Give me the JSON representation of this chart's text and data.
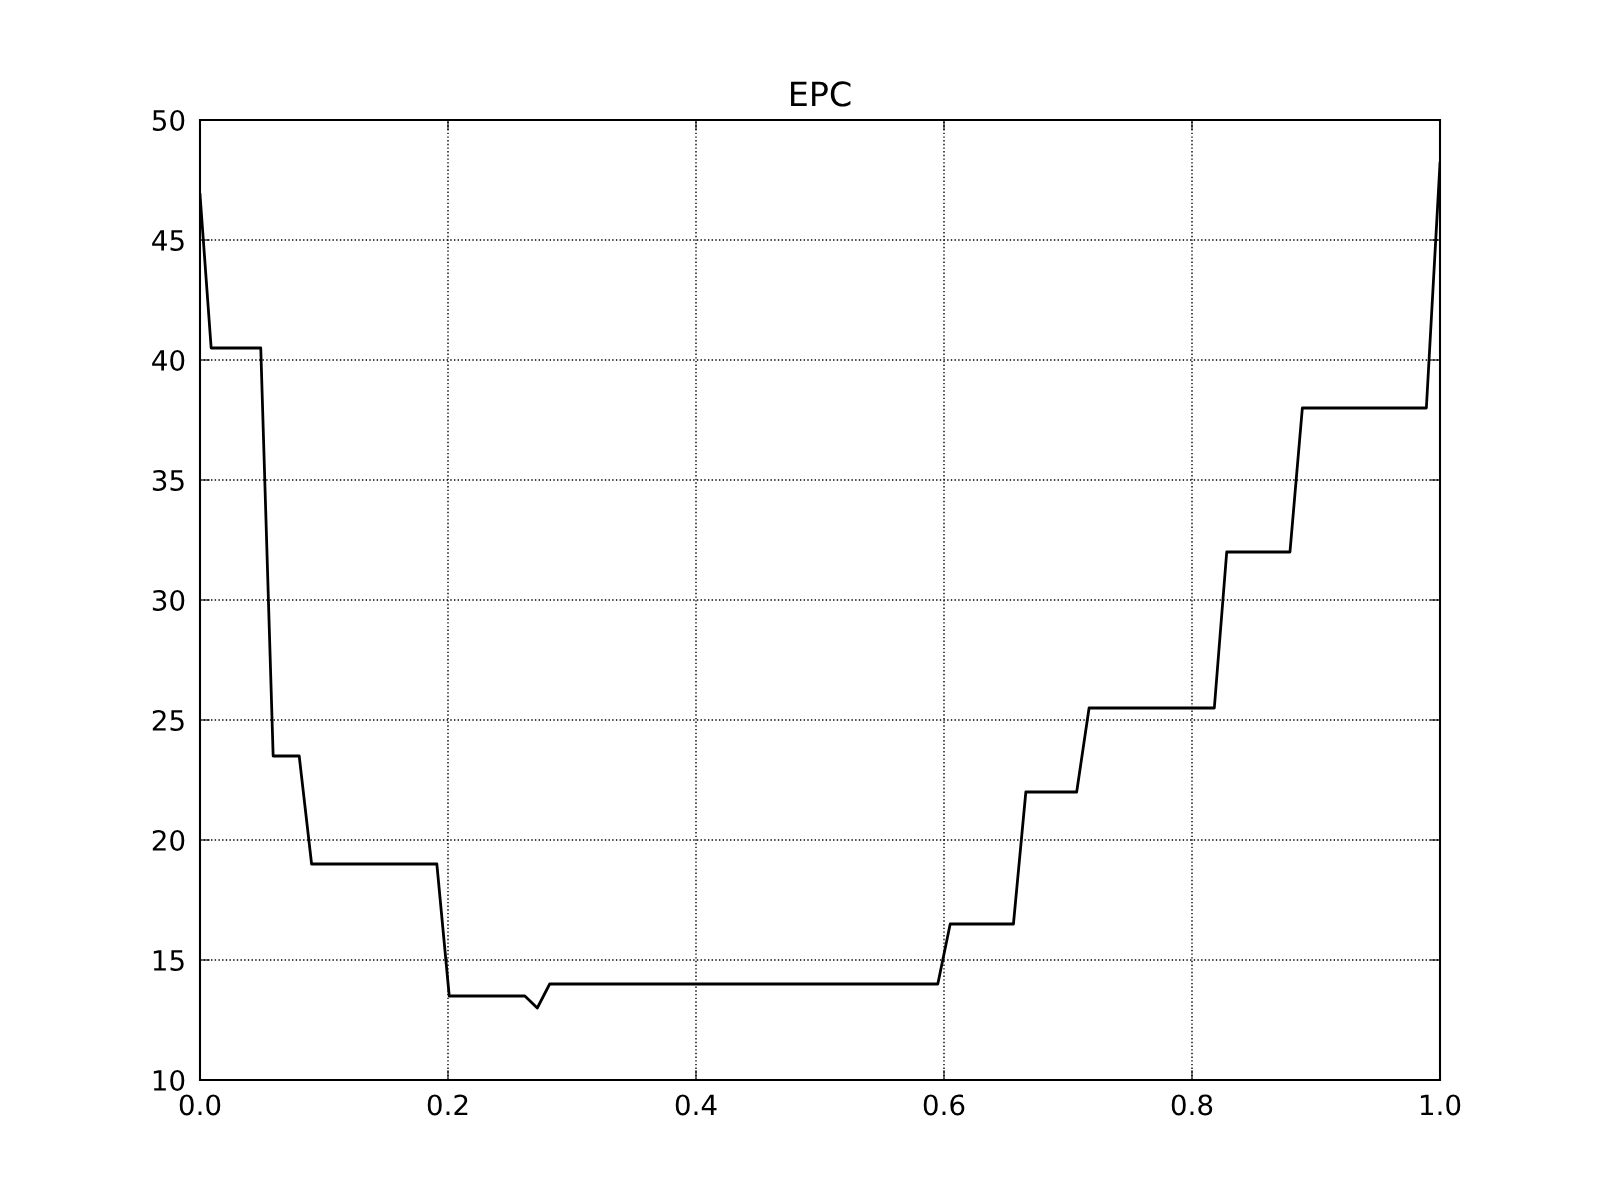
{
  "chart_data": {
    "type": "line",
    "title": "EPC",
    "x": [
      0.0,
      0.009,
      0.049,
      0.059,
      0.08,
      0.09,
      0.191,
      0.201,
      0.262,
      0.272,
      0.282,
      0.595,
      0.605,
      0.656,
      0.666,
      0.707,
      0.717,
      0.818,
      0.828,
      0.879,
      0.889,
      0.989,
      1.0
    ],
    "series": [
      {
        "color": "#000000",
        "values": [
          46.9,
          40.5,
          40.5,
          23.5,
          23.5,
          19,
          19,
          13.5,
          13.5,
          13,
          14,
          14,
          16.5,
          16.5,
          22,
          22,
          25.5,
          25.5,
          32,
          32,
          38,
          38,
          48.2
        ]
      }
    ],
    "xlim": [
      0.0,
      1.0
    ],
    "xticks": [
      {
        "value": 0.0,
        "label": "0.0"
      },
      0.2,
      0.4,
      0.6,
      0.8,
      {
        "value": 1.0,
        "label": "1.0"
      }
    ],
    "ylim": [
      10,
      50
    ],
    "yticks": [
      10,
      15,
      20,
      25,
      30,
      35,
      40,
      45,
      50
    ],
    "grid": true,
    "marker": "none",
    "line_style": "solid"
  }
}
